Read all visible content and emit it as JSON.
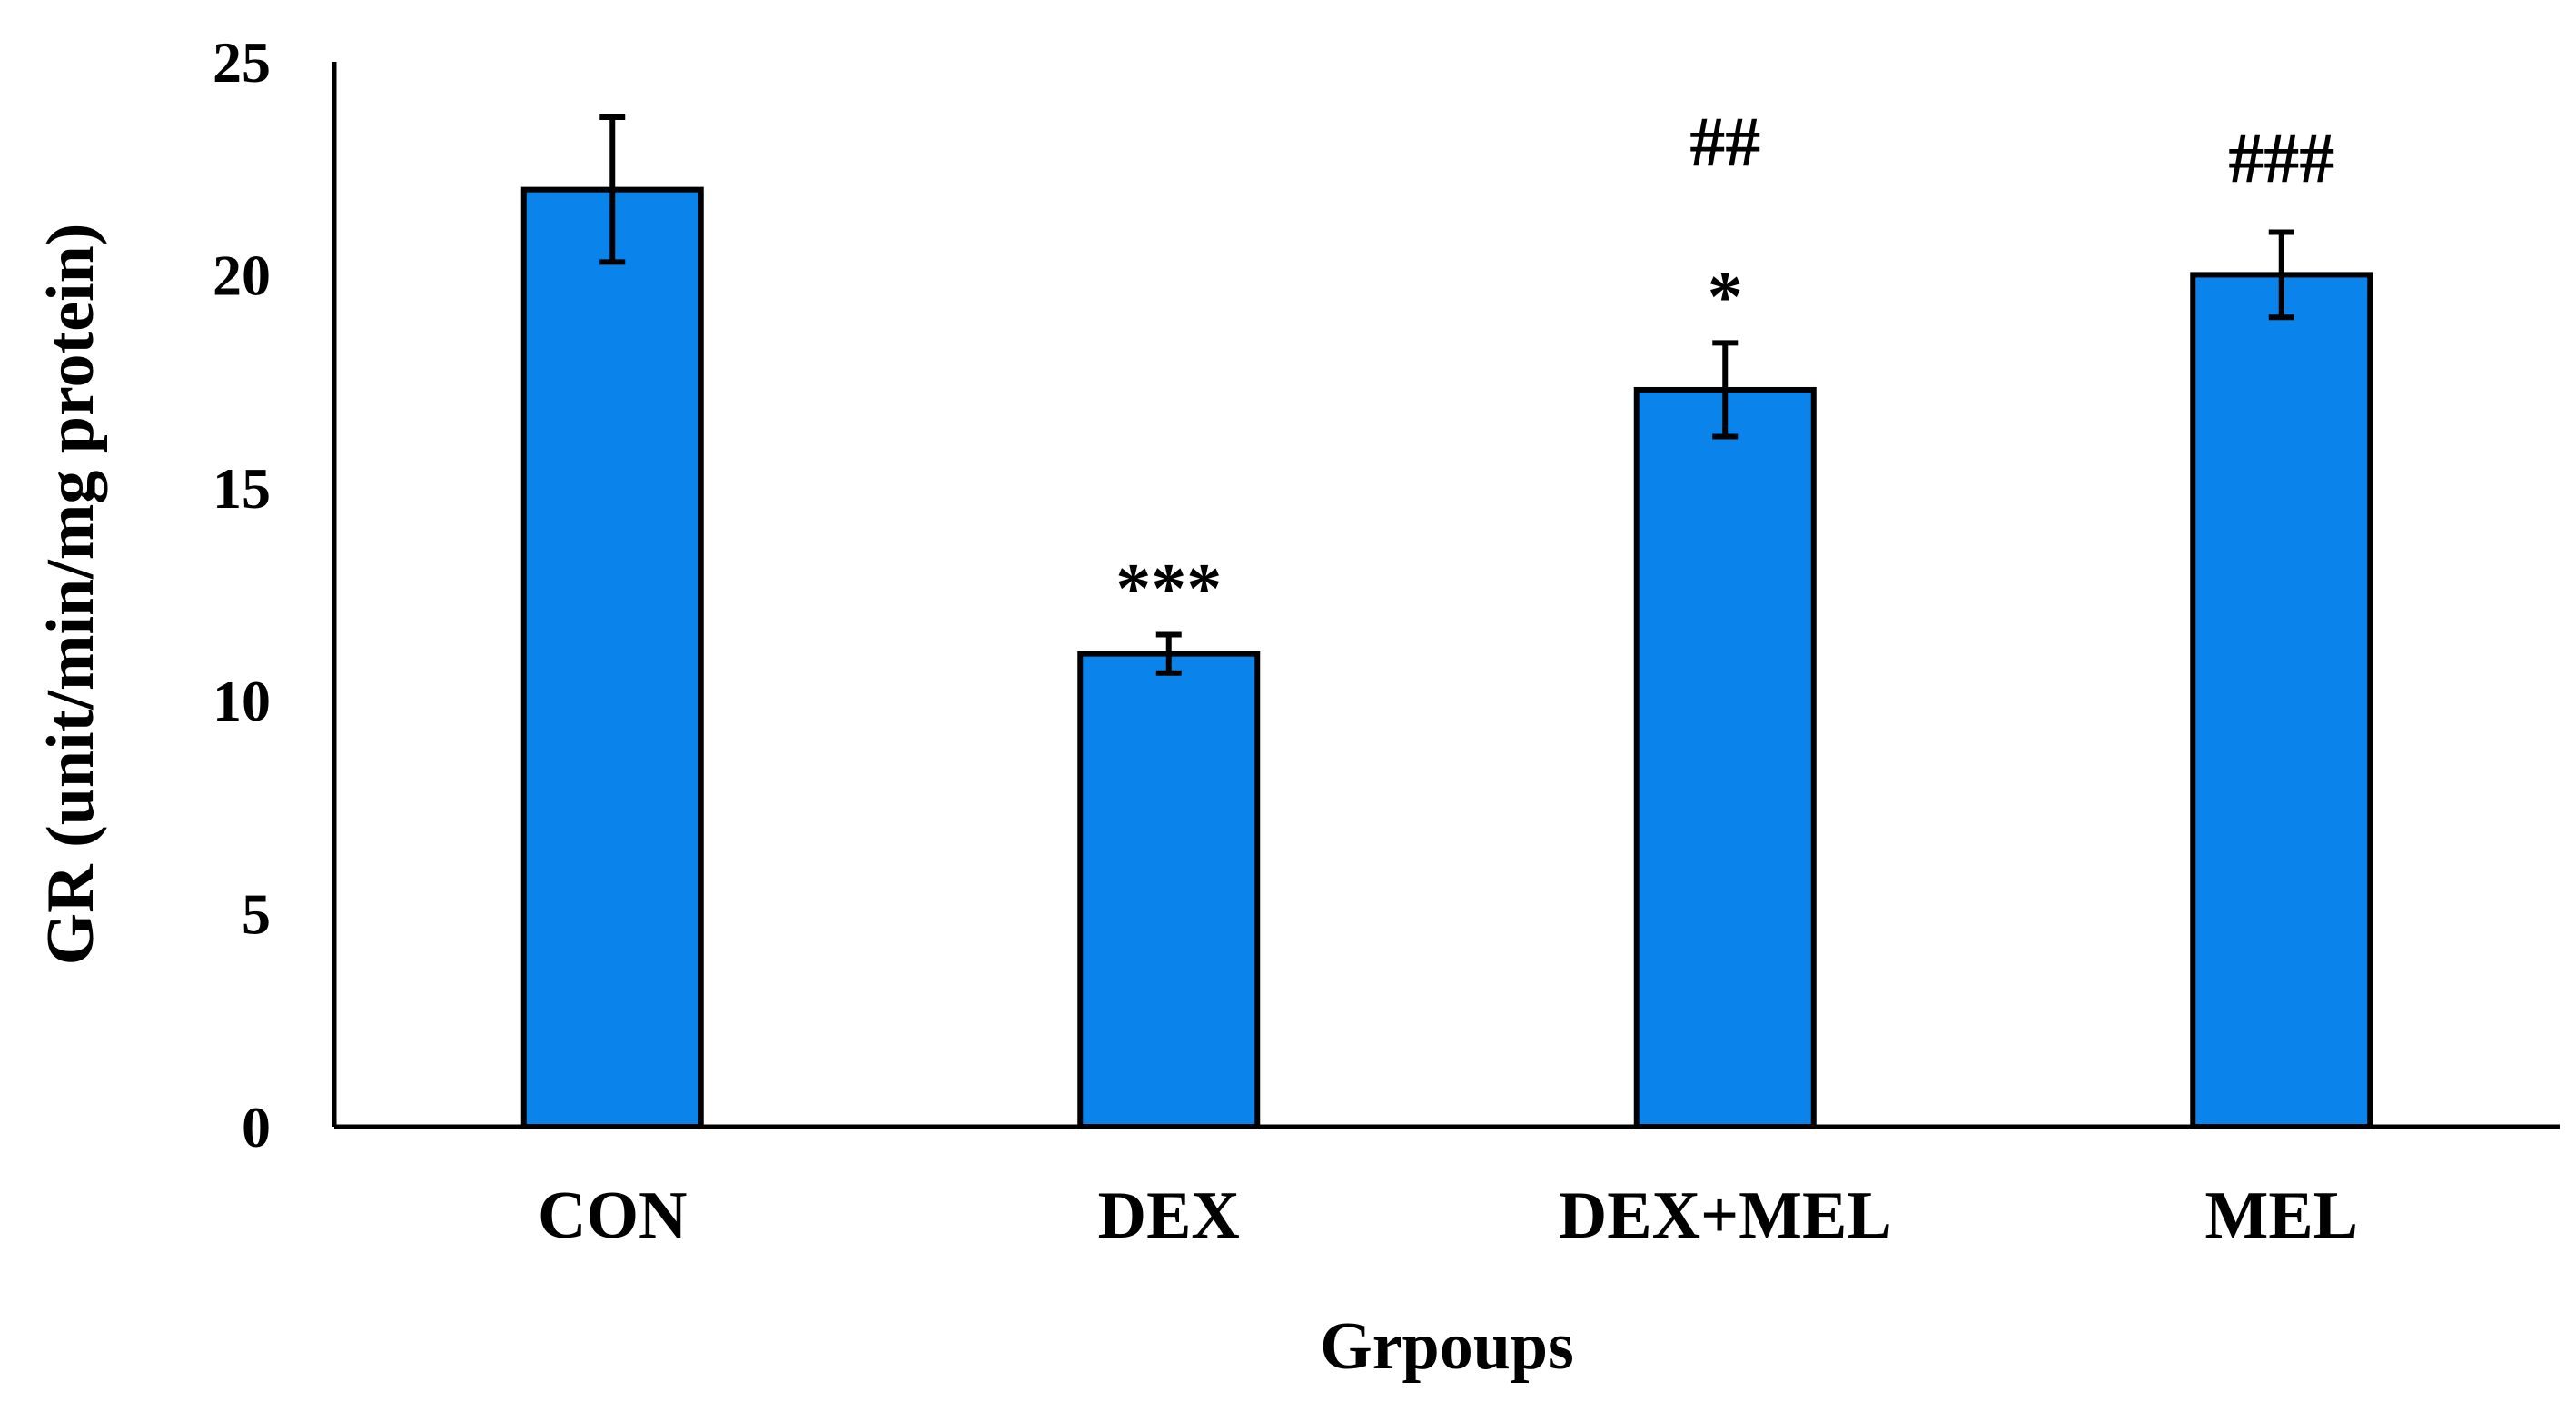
{
  "chart_data": {
    "type": "bar",
    "title": "",
    "xlabel": "Grpoups",
    "ylabel": "GR (unit/min/mg protein)",
    "ylim": [
      0,
      25
    ],
    "yticks": [
      "0",
      "5",
      "10",
      "15",
      "20",
      "25"
    ],
    "grid": false,
    "categories": [
      "CON",
      "DEX",
      "DEX+MEL",
      "MEL"
    ],
    "values": [
      22.0,
      11.1,
      17.3,
      20.0
    ],
    "errors": [
      1.7,
      0.45,
      1.1,
      1.0
    ],
    "annotations": [
      {
        "category": "DEX",
        "lines": [
          "***"
        ]
      },
      {
        "category": "DEX+MEL",
        "lines": [
          "##",
          "*"
        ]
      },
      {
        "category": "MEL",
        "lines": [
          "###"
        ]
      }
    ],
    "colors": {
      "bar": "#0a84ea",
      "bar_edge": "#000000",
      "axis": "#000000"
    }
  }
}
